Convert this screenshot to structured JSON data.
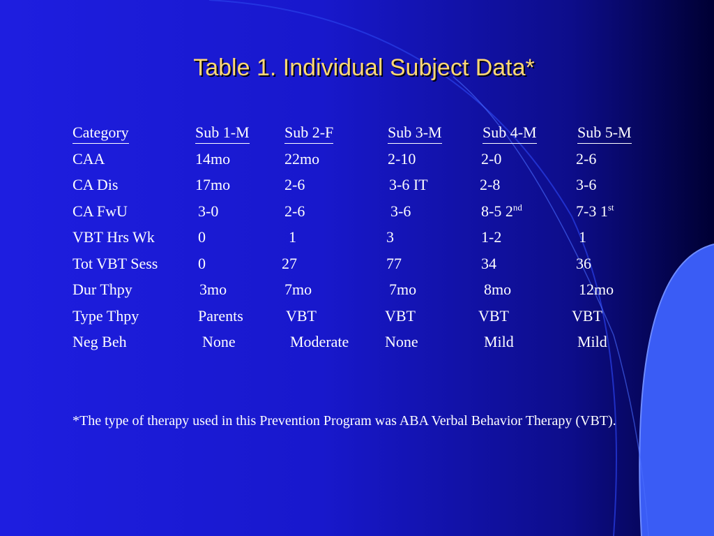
{
  "slide": {
    "title": "Table 1. Individual Subject Data*",
    "colors": {
      "title": "#ffd875",
      "text": "#ffffff",
      "background": "#1e1ee0",
      "accent_light": "#3a5cf5"
    }
  },
  "table": {
    "headers": [
      "Category",
      "Sub 1-M",
      "Sub 2-F",
      "Sub 3-M",
      "Sub 4-M",
      "Sub 5-M"
    ],
    "rows": [
      {
        "cells": [
          "CAA",
          "14mo",
          "22mo",
          "2-10",
          "2-0",
          "2-6"
        ]
      },
      {
        "cells": [
          "CA Dis",
          "17mo",
          "2-6",
          "3-6 IT",
          "2-8",
          "3-6"
        ]
      },
      {
        "cells": [
          "CA FwU",
          "3-0",
          "2-6",
          "3-6",
          "8-5 2",
          "7-3 1"
        ],
        "sup": {
          "4": "nd",
          "5": "st"
        }
      },
      {
        "cells": [
          "VBT Hrs Wk",
          "0",
          "1",
          "3",
          "1-2",
          "1"
        ]
      },
      {
        "cells": [
          "Tot VBT Sess",
          "0",
          "27",
          "77",
          "34",
          "36"
        ]
      },
      {
        "cells": [
          "Dur Thpy",
          "3mo",
          "7mo",
          "7mo",
          "8mo",
          "12mo"
        ]
      },
      {
        "cells": [
          "Type Thpy",
          "Parents",
          "VBT",
          "VBT",
          "VBT",
          "VBT"
        ]
      },
      {
        "cells": [
          "Neg Beh",
          "None",
          "Moderate",
          "None",
          "Mild",
          "Mild"
        ]
      }
    ]
  },
  "footnote": "*The type of therapy used in this Prevention Program was ABA Verbal Behavior Therapy (VBT)."
}
